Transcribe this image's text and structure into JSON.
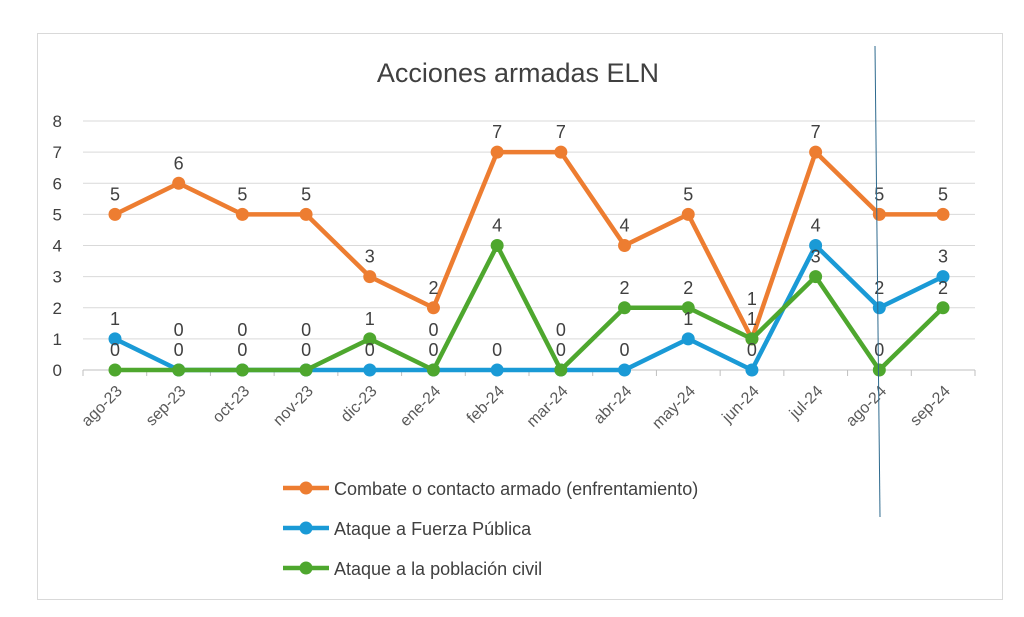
{
  "chart_data": {
    "type": "line",
    "title": "Acciones armadas ELN",
    "xlabel": "",
    "ylabel": "",
    "ylim": [
      0,
      8
    ],
    "yticks": [
      "0",
      "1",
      "2",
      "3",
      "4",
      "5",
      "6",
      "7",
      "8"
    ],
    "grid": true,
    "legend_position": "bottom",
    "categories": [
      "ago-23",
      "sep-23",
      "oct-23",
      "nov-23",
      "dic-23",
      "ene-24",
      "feb-24",
      "mar-24",
      "abr-24",
      "may-24",
      "jun-24",
      "jul-24",
      "ago-24",
      "sep-24"
    ],
    "series": [
      {
        "name": "Combate o contacto armado (enfrentamiento)",
        "color": "#ed7d31",
        "values": [
          5,
          6,
          5,
          5,
          3,
          2,
          7,
          7,
          4,
          5,
          1,
          7,
          5,
          5
        ]
      },
      {
        "name": "Ataque a Fuerza Pública",
        "color": "#1a9ad6",
        "values": [
          1,
          0,
          0,
          0,
          0,
          0,
          0,
          0,
          0,
          1,
          0,
          4,
          2,
          3
        ]
      },
      {
        "name": "Ataque a la población civil",
        "color": "#4ea72e",
        "values": [
          0,
          0,
          0,
          0,
          1,
          0,
          4,
          0,
          2,
          2,
          1,
          3,
          0,
          2
        ]
      }
    ]
  }
}
